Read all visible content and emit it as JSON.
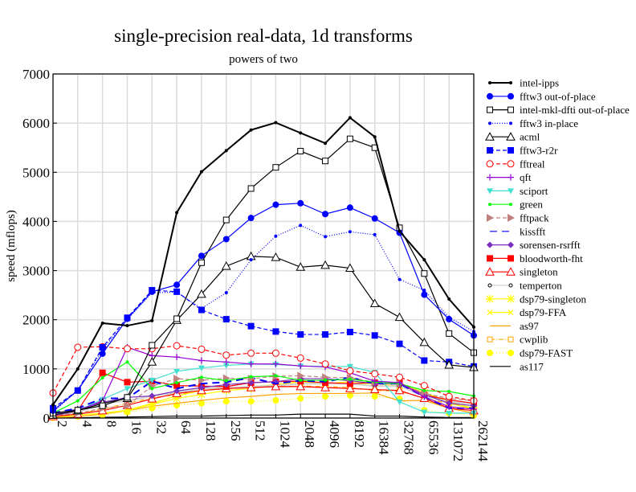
{
  "chart_data": {
    "type": "line",
    "title": "single-precision real-data, 1d transforms",
    "subtitle": "powers of two",
    "xlabel": "",
    "ylabel": "speed (mflops)",
    "ylim": [
      0,
      7000
    ],
    "yticks": [
      "0",
      "1000",
      "2000",
      "3000",
      "4000",
      "5000",
      "6000",
      "7000"
    ],
    "x": [
      "2",
      "4",
      "8",
      "16",
      "32",
      "64",
      "128",
      "256",
      "512",
      "1024",
      "2048",
      "4096",
      "8192",
      "16384",
      "32768",
      "65536",
      "131072",
      "262144"
    ],
    "x_scale": "log2",
    "grid": true,
    "legend_position": "right",
    "series": [
      {
        "name": "intel-ipps",
        "color": "#000000",
        "dash": "",
        "marker": "dot",
        "values": [
          270,
          1000,
          1930,
          1880,
          1980,
          4180,
          5010,
          5440,
          5860,
          6010,
          5800,
          5590,
          6110,
          5720,
          3800,
          3220,
          2420,
          1850
        ]
      },
      {
        "name": "fftw3 out-of-place",
        "color": "#0000ff",
        "dash": "",
        "marker": "circle-filled",
        "values": [
          150,
          560,
          1310,
          2020,
          2570,
          2710,
          3300,
          3640,
          4070,
          4340,
          4370,
          4150,
          4280,
          4060,
          3770,
          2510,
          2010,
          1680
        ]
      },
      {
        "name": "intel-mkl-dfti out-of-place",
        "color": "#000000",
        "dash": "",
        "marker": "square-open",
        "values": [
          100,
          160,
          250,
          420,
          1480,
          2020,
          3160,
          4030,
          4670,
          5100,
          5430,
          5230,
          5680,
          5500,
          3870,
          2940,
          1720,
          1330
        ]
      },
      {
        "name": "fftw3 in-place",
        "color": "#0000ff",
        "dash": "1,2",
        "marker": "dot",
        "values": [
          120,
          560,
          1400,
          2000,
          2550,
          2560,
          2230,
          2550,
          3220,
          3700,
          3920,
          3690,
          3790,
          3730,
          2820,
          2600,
          2050,
          1760
        ]
      },
      {
        "name": "acml",
        "color": "#000000",
        "dash": "",
        "marker": "triangle-open",
        "values": [
          60,
          150,
          300,
          400,
          1140,
          1990,
          2520,
          3090,
          3290,
          3270,
          3070,
          3110,
          3050,
          2330,
          2050,
          1540,
          1080,
          1030
        ]
      },
      {
        "name": "fftw3-r2r",
        "color": "#0000ff",
        "dash": "5,3",
        "marker": "square-filled",
        "values": [
          200,
          560,
          1440,
          2040,
          2600,
          2570,
          2200,
          2010,
          1870,
          1760,
          1700,
          1700,
          1750,
          1680,
          1510,
          1170,
          1140,
          1050
        ]
      },
      {
        "name": "fftreal",
        "color": "#ff0000",
        "dash": "5,3",
        "marker": "circle-open",
        "values": [
          510,
          1440,
          1450,
          1410,
          1410,
          1470,
          1400,
          1280,
          1320,
          1320,
          1220,
          1100,
          960,
          900,
          830,
          660,
          440,
          350
        ]
      },
      {
        "name": "qft",
        "color": "#9400d3",
        "dash": "",
        "marker": "plus",
        "values": [
          50,
          150,
          350,
          1440,
          1270,
          1240,
          1170,
          1140,
          1100,
          1100,
          1060,
          1040,
          920,
          750,
          720,
          430,
          230,
          180
        ]
      },
      {
        "name": "sciport",
        "color": "#40e0d0",
        "dash": "",
        "marker": "triangle-down",
        "values": [
          60,
          150,
          380,
          600,
          770,
          950,
          1020,
          1070,
          1100,
          1090,
          1060,
          1050,
          1050,
          930,
          330,
          120,
          100,
          100
        ]
      },
      {
        "name": "green",
        "color": "#00ff00",
        "dash": "",
        "marker": "dot",
        "values": [
          100,
          350,
          820,
          1140,
          600,
          720,
          830,
          760,
          840,
          860,
          770,
          770,
          790,
          730,
          700,
          560,
          540,
          450
        ]
      },
      {
        "name": "fftpack",
        "color": "#c08080",
        "dash": "5,3",
        "marker": "triangle-right",
        "values": [
          50,
          100,
          200,
          250,
          650,
          800,
          770,
          810,
          800,
          850,
          860,
          830,
          820,
          730,
          700,
          500,
          400,
          350
        ]
      },
      {
        "name": "kissfft",
        "color": "#0000ff",
        "dash": "9,6",
        "marker": "none",
        "values": [
          100,
          200,
          400,
          400,
          750,
          600,
          700,
          730,
          820,
          700,
          760,
          740,
          830,
          700,
          700,
          430,
          200,
          200
        ]
      },
      {
        "name": "sorensen-rsrfft",
        "color": "#7b2fbe",
        "dash": "",
        "marker": "diamond",
        "values": [
          80,
          180,
          320,
          420,
          450,
          550,
          620,
          680,
          720,
          740,
          800,
          800,
          760,
          700,
          700,
          480,
          300,
          250
        ]
      },
      {
        "name": "bloodworth-fht",
        "color": "#ff0000",
        "dash": "",
        "marker": "square-filled",
        "values": [
          50,
          150,
          920,
          730,
          750,
          660,
          650,
          640,
          720,
          740,
          750,
          720,
          700,
          720,
          720,
          470,
          370,
          300
        ]
      },
      {
        "name": "singleton",
        "color": "#ff0000",
        "dash": "",
        "marker": "triangle-open",
        "values": [
          30,
          80,
          150,
          260,
          390,
          500,
          560,
          600,
          620,
          640,
          640,
          620,
          600,
          580,
          560,
          400,
          200,
          150
        ]
      },
      {
        "name": "temperton",
        "color": "#d0d0d0",
        "dash": "",
        "marker": "circle-small",
        "values": [
          40,
          120,
          300,
          350,
          450,
          520,
          600,
          620,
          640,
          660,
          700,
          700,
          700,
          650,
          650,
          450,
          330,
          290
        ]
      },
      {
        "name": "dsp79-singleton",
        "color": "#ffff00",
        "dash": "",
        "marker": "star",
        "values": [
          20,
          60,
          100,
          150,
          280,
          400,
          480,
          560,
          600,
          680,
          700,
          700,
          700,
          700,
          650,
          520,
          330,
          200
        ]
      },
      {
        "name": "dsp79-FFA",
        "color": "#ffff00",
        "dash": "",
        "marker": "x",
        "values": [
          20,
          60,
          100,
          160,
          300,
          450,
          560,
          610,
          640,
          680,
          740,
          700,
          740,
          720,
          700,
          520,
          300,
          180
        ]
      },
      {
        "name": "as97",
        "color": "#ffa500",
        "dash": "",
        "marker": "none",
        "values": [
          10,
          30,
          80,
          150,
          240,
          300,
          360,
          410,
          440,
          480,
          500,
          500,
          500,
          510,
          350,
          360,
          200,
          100
        ]
      },
      {
        "name": "cwplib",
        "color": "#ffa500",
        "dash": "6,2,1,2",
        "marker": "square-small",
        "values": [
          20,
          80,
          180,
          300,
          410,
          480,
          560,
          600,
          620,
          640,
          650,
          640,
          620,
          560,
          550,
          400,
          300,
          200
        ]
      },
      {
        "name": "dsp79-FAST",
        "color": "#ffff00",
        "dash": "1,3",
        "marker": "circle-filled",
        "values": [
          5,
          30,
          60,
          120,
          200,
          260,
          300,
          340,
          340,
          360,
          400,
          440,
          460,
          440,
          390,
          160,
          100,
          50
        ]
      },
      {
        "name": "as117",
        "color": "#000000",
        "dash": "",
        "marker": "none",
        "values": [
          0,
          5,
          15,
          20,
          30,
          40,
          40,
          50,
          60,
          60,
          80,
          80,
          80,
          40,
          40,
          20,
          10,
          10
        ]
      }
    ]
  }
}
